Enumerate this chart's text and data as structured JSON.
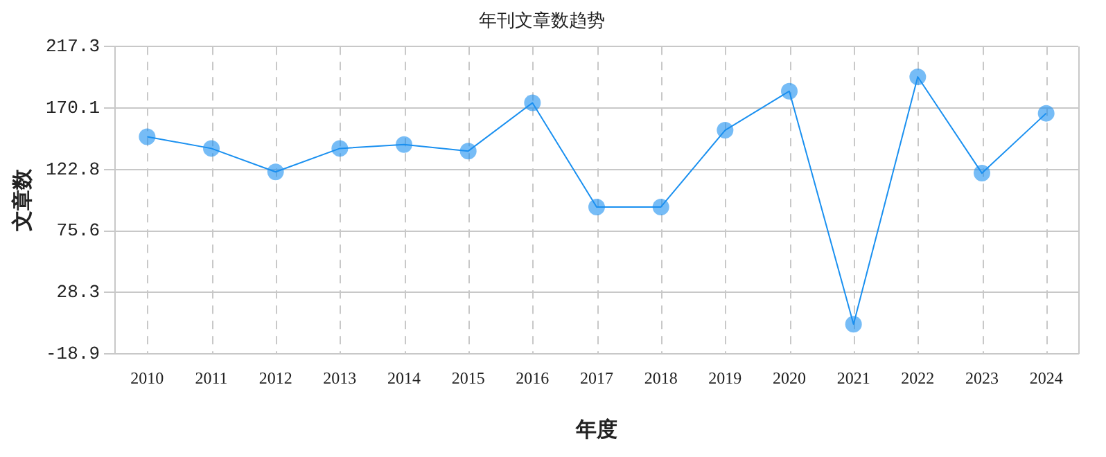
{
  "chart_data": {
    "type": "line",
    "title": "年刊文章数趋势",
    "xlabel": "年度",
    "ylabel": "文章数",
    "categories": [
      "2010",
      "2011",
      "2012",
      "2013",
      "2014",
      "2015",
      "2016",
      "2017",
      "2018",
      "2019",
      "2020",
      "2021",
      "2022",
      "2023",
      "2024"
    ],
    "series": [
      {
        "color": "#1a90f0",
        "values": [
          148,
          139,
          121,
          139,
          142,
          137,
          174,
          94,
          94,
          153,
          183,
          4,
          194,
          120,
          166
        ]
      }
    ],
    "ylim": [
      -18.9,
      217.3
    ],
    "yticks": [
      -18.9,
      28.3,
      75.6,
      122.8,
      170.1,
      217.3
    ],
    "grid": true,
    "legend": false,
    "marker": "circle",
    "line_style": "solid"
  }
}
